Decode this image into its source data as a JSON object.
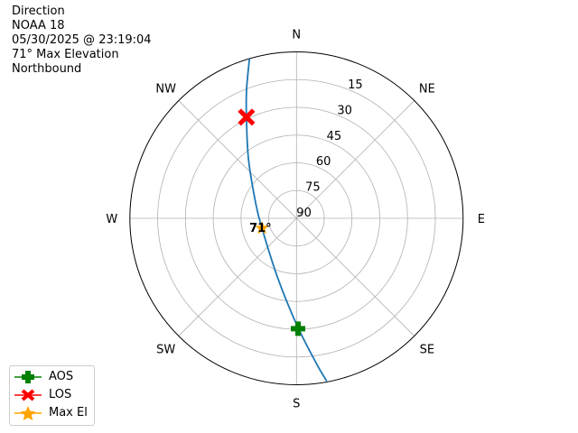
{
  "header": {
    "lines": [
      "Direction",
      "NOAA 18",
      "05/30/2025 @ 23:19:04",
      "71° Max Elevation",
      "Northbound"
    ]
  },
  "chart_data": {
    "type": "polar-line",
    "theta_direction": "clockwise",
    "theta_zero": "N",
    "direction_labels": [
      {
        "label": "N",
        "az": 0
      },
      {
        "label": "NE",
        "az": 45
      },
      {
        "label": "E",
        "az": 90
      },
      {
        "label": "SE",
        "az": 135
      },
      {
        "label": "S",
        "az": 180
      },
      {
        "label": "SW",
        "az": 225
      },
      {
        "label": "W",
        "az": 270
      },
      {
        "label": "NW",
        "az": 315
      }
    ],
    "radial_ticks": [
      15,
      30,
      45,
      60,
      75,
      90
    ],
    "radial_range": [
      0,
      90
    ],
    "grid": true,
    "track": {
      "color": "#1f77b4",
      "points": [
        {
          "az": 343.6,
          "el": 0.0
        },
        {
          "az": 338.7,
          "el": 15.7
        },
        {
          "az": 333.7,
          "el": 29.0
        },
        {
          "az": 320.9,
          "el": 48.9
        },
        {
          "az": 289.1,
          "el": 66.8
        },
        {
          "az": 254.0,
          "el": 70.6
        },
        {
          "az": 198.5,
          "el": 57.0
        },
        {
          "az": 180.0,
          "el": 32.7
        },
        {
          "az": 172.3,
          "el": 11.1
        },
        {
          "az": 169.5,
          "el": 0.5
        }
      ]
    },
    "markers": [
      {
        "name": "AOS",
        "az": 179.2,
        "el": 30.3,
        "color": "#008000",
        "shape": "plus"
      },
      {
        "name": "LOS",
        "az": 333.7,
        "el": 29.0,
        "color": "#ff0000",
        "shape": "x"
      },
      {
        "name": "Max El",
        "az": 254.0,
        "el": 70.6,
        "color": "#ffa500",
        "shape": "star"
      }
    ],
    "annotation": {
      "text": "71°",
      "az": 254.0,
      "el": 70.6
    },
    "legend": {
      "placement": "bottom-left",
      "entries": [
        "AOS",
        "LOS",
        "Max El"
      ]
    }
  }
}
